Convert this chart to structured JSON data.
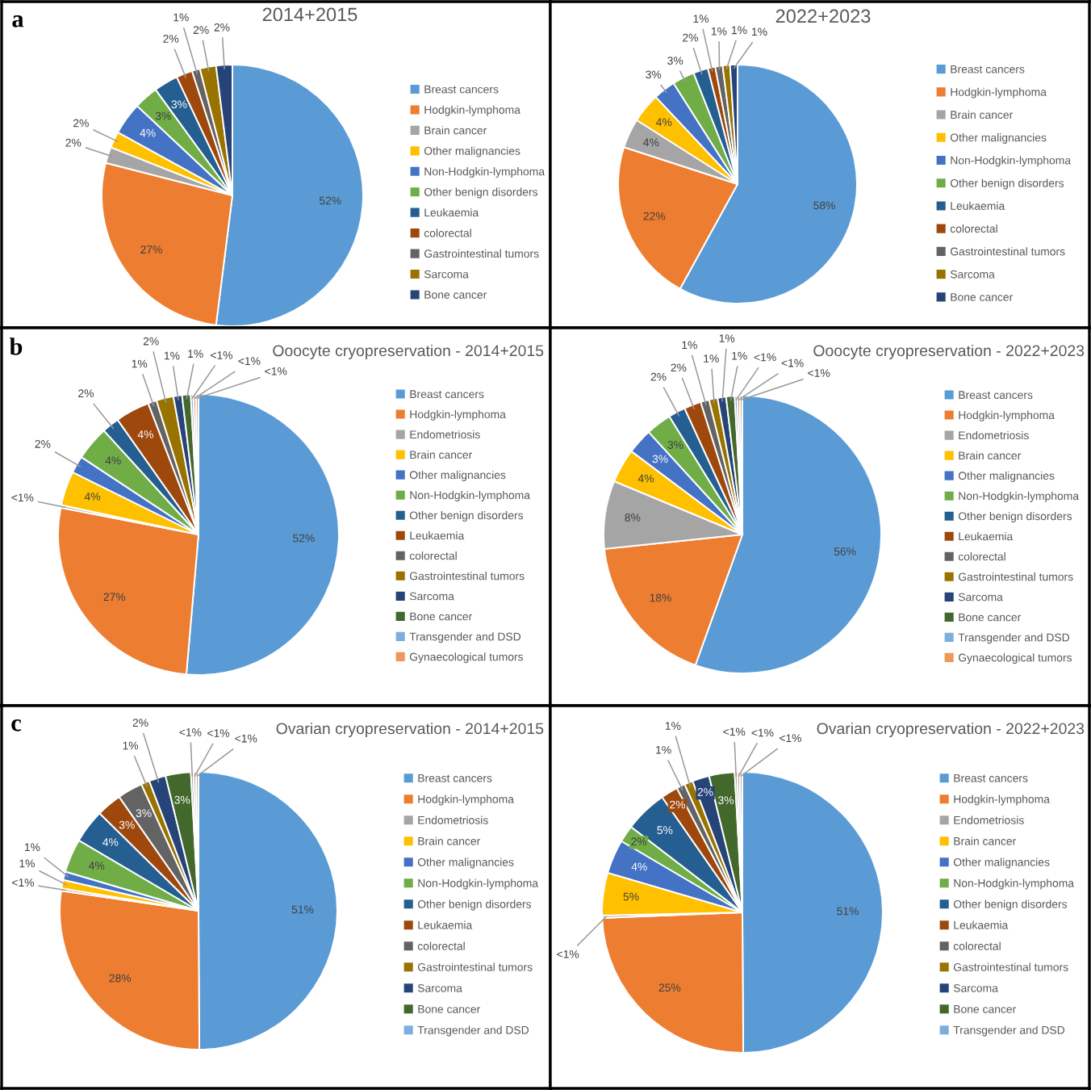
{
  "chart_data": [
    {
      "type": "pie",
      "title": "2014+2015",
      "annotations": [
        "a"
      ],
      "legend": "right",
      "categories": [
        "Breast cancers",
        "Hodgkin-lymphoma",
        "Brain cancer",
        "Other malignancies",
        "Non-Hodgkin-lymphoma",
        "Other benign disorders",
        "Leukaemia",
        "colorectal",
        "Gastrointestinal tumors",
        "Sarcoma",
        "Bone cancer"
      ],
      "values": [
        52,
        27,
        2,
        2,
        4,
        3,
        3,
        2,
        1,
        2,
        2
      ],
      "value_labels": [
        "52%",
        "27%",
        "2%",
        "2%",
        "4%",
        "3%",
        "3%",
        "2%",
        "1%",
        "2%",
        "2%"
      ],
      "colors": [
        "#5b9bd5",
        "#ed7d31",
        "#a5a5a5",
        "#ffc000",
        "#4472c4",
        "#70ad47",
        "#255e91",
        "#9e480e",
        "#636363",
        "#997300",
        "#264478"
      ]
    },
    {
      "type": "pie",
      "title": "2022+2023",
      "legend": "right",
      "categories": [
        "Breast cancers",
        "Hodgkin-lymphoma",
        "Brain cancer",
        "Other malignancies",
        "Non-Hodgkin-lymphoma",
        "Other benign disorders",
        "Leukaemia",
        "colorectal",
        "Gastrointestinal tumors",
        "Sarcoma",
        "Bone cancer"
      ],
      "values": [
        58,
        22,
        4,
        4,
        3,
        3,
        2,
        1,
        1,
        1,
        1
      ],
      "value_labels": [
        "58%",
        "22%",
        "4%",
        "4%",
        "3%",
        "3%",
        "2%",
        "1%",
        "1%",
        "1%",
        "1%"
      ],
      "colors": [
        "#5b9bd5",
        "#ed7d31",
        "#a5a5a5",
        "#ffc000",
        "#4472c4",
        "#70ad47",
        "#255e91",
        "#9e480e",
        "#636363",
        "#997300",
        "#264478"
      ]
    },
    {
      "type": "pie",
      "title": "Ooocyte cryopreservation - 2014+2015",
      "annotations": [
        "b"
      ],
      "legend": "right",
      "categories": [
        "Breast cancers",
        "Hodgkin-lymphoma",
        "Endometriosis",
        "Brain cancer",
        "Other malignancies",
        "Non-Hodgkin-lymphoma",
        "Other benign disorders",
        "Leukaemia",
        "colorectal",
        "Gastrointestinal tumors",
        "Sarcoma",
        "Bone cancer",
        "Transgender and DSD",
        "Gynaecological tumors",
        null
      ],
      "values": [
        52,
        27,
        0.3,
        4,
        2,
        4,
        2,
        4,
        1,
        2,
        1,
        1,
        0.3,
        0.3,
        0.3
      ],
      "value_labels": [
        "52%",
        "27%",
        "<1%",
        "4%",
        "2%",
        "4%",
        "2%",
        "4%",
        "1%",
        "2%",
        "1%",
        "1%",
        "<1%",
        "<1%",
        "<1%"
      ],
      "colors": [
        "#5b9bd5",
        "#ed7d31",
        "#a5a5a5",
        "#ffc000",
        "#4472c4",
        "#70ad47",
        "#255e91",
        "#9e480e",
        "#636363",
        "#997300",
        "#264478",
        "#43682b",
        "#7cafdd",
        "#f1975a",
        "#b7b7b7"
      ]
    },
    {
      "type": "pie",
      "title": "Ooocyte cryopreservation - 2022+2023",
      "legend": "right",
      "categories": [
        "Breast cancers",
        "Hodgkin-lymphoma",
        "Endometriosis",
        "Brain cancer",
        "Other malignancies",
        "Non-Hodgkin-lymphoma",
        "Other benign disorders",
        "Leukaemia",
        "colorectal",
        "Gastrointestinal tumors",
        "Sarcoma",
        "Bone cancer",
        "Transgender and DSD",
        "Gynaecological tumors",
        null
      ],
      "values": [
        56,
        18,
        8,
        4,
        3,
        3,
        2,
        2,
        1,
        1,
        1,
        1,
        0.3,
        0.3,
        0.3
      ],
      "value_labels": [
        "56%",
        "18%",
        "8%",
        "4%",
        "3%",
        "3%",
        "2%",
        "2%",
        "1%",
        "1%",
        "1%",
        "1%",
        "<1%",
        "<1%",
        "<1%"
      ],
      "colors": [
        "#5b9bd5",
        "#ed7d31",
        "#a5a5a5",
        "#ffc000",
        "#4472c4",
        "#70ad47",
        "#255e91",
        "#9e480e",
        "#636363",
        "#997300",
        "#264478",
        "#43682b",
        "#7cafdd",
        "#f1975a",
        "#b7b7b7"
      ]
    },
    {
      "type": "pie",
      "title": "Ovarian cryopreservation - 2014+2015",
      "annotations": [
        "c"
      ],
      "legend": "right",
      "categories": [
        "Breast cancers",
        "Hodgkin-lymphoma",
        "Endometriosis",
        "Brain cancer",
        "Other malignancies",
        "Non-Hodgkin-lymphoma",
        "Other benign disorders",
        "Leukaemia",
        "colorectal",
        "Gastrointestinal tumors",
        "Sarcoma",
        "Bone cancer",
        "Transgender and DSD",
        null,
        null
      ],
      "values": [
        51,
        28,
        0.3,
        1,
        1,
        4,
        4,
        3,
        3,
        1,
        2,
        3,
        0.3,
        0.3,
        0.3
      ],
      "value_labels": [
        "51%",
        "28%",
        "<1%",
        "1%",
        "1%",
        "4%",
        "4%",
        "3%",
        "3%",
        "1%",
        "2%",
        "3%",
        "<1%",
        "<1%",
        "<1%"
      ],
      "colors": [
        "#5b9bd5",
        "#ed7d31",
        "#a5a5a5",
        "#ffc000",
        "#4472c4",
        "#70ad47",
        "#255e91",
        "#9e480e",
        "#636363",
        "#997300",
        "#264478",
        "#43682b",
        "#7cafdd",
        "#f1975a",
        "#b7b7b7"
      ]
    },
    {
      "type": "pie",
      "title": "Ovarian cryopreservation - 2022+2023",
      "legend": "right",
      "categories": [
        "Breast cancers",
        "Hodgkin-lymphoma",
        "Endometriosis",
        "Brain cancer",
        "Other malignancies",
        "Non-Hodgkin-lymphoma",
        "Other benign disorders",
        "Leukaemia",
        "colorectal",
        "Gastrointestinal tumors",
        "Sarcoma",
        "Bone cancer",
        "Transgender and DSD",
        null,
        null
      ],
      "values": [
        51,
        25,
        0.3,
        5,
        4,
        2,
        5,
        2,
        1,
        1,
        2,
        3,
        0.3,
        0.3,
        0.3
      ],
      "value_labels": [
        "51%",
        "25%",
        "<1%",
        "5%",
        "4%",
        "2%",
        "5%",
        "2%",
        "1%",
        "1%",
        "2%",
        "3%",
        "<1%",
        "<1%",
        "<1%"
      ],
      "colors": [
        "#5b9bd5",
        "#ed7d31",
        "#a5a5a5",
        "#ffc000",
        "#4472c4",
        "#70ad47",
        "#255e91",
        "#9e480e",
        "#636363",
        "#997300",
        "#264478",
        "#43682b",
        "#7cafdd",
        "#f1975a",
        "#b7b7b7"
      ]
    }
  ]
}
